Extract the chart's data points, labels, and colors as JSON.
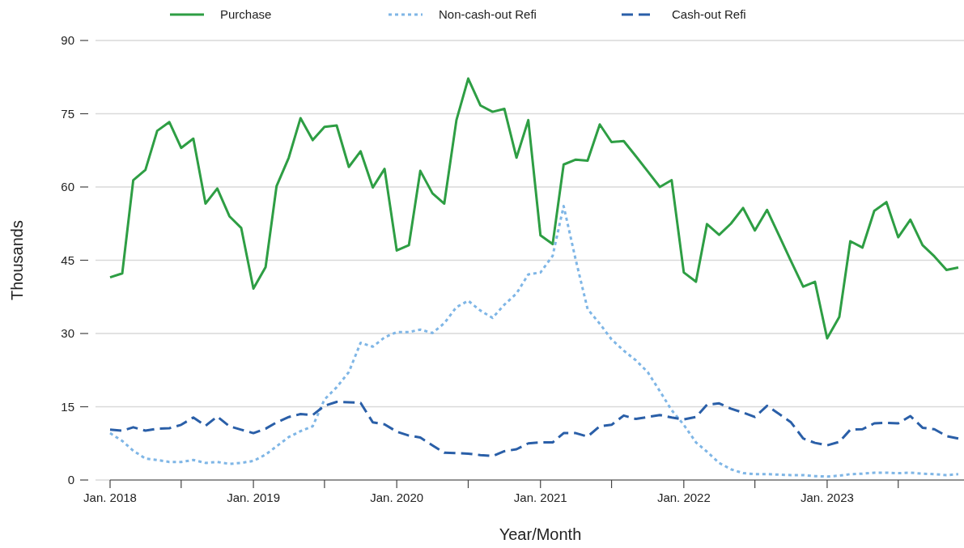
{
  "chart_data": {
    "type": "line",
    "xlabel": "Year/Month",
    "ylabel": "Thousands",
    "x": [
      "2018-01",
      "2018-02",
      "2018-03",
      "2018-04",
      "2018-05",
      "2018-06",
      "2018-07",
      "2018-08",
      "2018-09",
      "2018-10",
      "2018-11",
      "2018-12",
      "2019-01",
      "2019-02",
      "2019-03",
      "2019-04",
      "2019-05",
      "2019-06",
      "2019-07",
      "2019-08",
      "2019-09",
      "2019-10",
      "2019-11",
      "2019-12",
      "2020-01",
      "2020-02",
      "2020-03",
      "2020-04",
      "2020-05",
      "2020-06",
      "2020-07",
      "2020-08",
      "2020-09",
      "2020-10",
      "2020-11",
      "2020-12",
      "2021-01",
      "2021-02",
      "2021-03",
      "2021-04",
      "2021-05",
      "2021-06",
      "2021-07",
      "2021-08",
      "2021-09",
      "2021-10",
      "2021-11",
      "2021-12",
      "2022-01",
      "2022-02",
      "2022-03",
      "2022-04",
      "2022-05",
      "2022-06",
      "2022-07",
      "2022-08",
      "2022-09",
      "2022-10",
      "2022-11",
      "2022-12",
      "2023-01",
      "2023-02",
      "2023-03",
      "2023-04",
      "2023-05",
      "2023-06",
      "2023-07",
      "2023-08",
      "2023-09",
      "2023-10",
      "2023-11",
      "2023-12"
    ],
    "series": [
      {
        "name": "Purchase",
        "color": "#2e9e44",
        "line_style": "solid",
        "values": [
          41.5,
          42.3,
          61.4,
          63.5,
          71.5,
          73.3,
          68,
          69.9,
          56.6,
          59.7,
          54,
          51.6,
          39.2,
          43.6,
          60.2,
          66,
          74.1,
          69.6,
          72.3,
          72.6,
          64.1,
          67.3,
          59.9,
          63.7,
          47,
          48.1,
          63.3,
          58.7,
          56.6,
          73.7,
          82.2,
          76.7,
          75.4,
          76,
          66,
          73.7,
          50.1,
          48.3,
          64.6,
          65.6,
          65.4,
          72.8,
          69.2,
          69.4,
          66.3,
          63.2,
          60,
          61.4,
          42.5,
          40.6,
          52.4,
          50.2,
          52.5,
          55.7,
          51.1,
          55.3,
          50,
          44.8,
          39.6,
          40.6,
          29,
          33.4,
          48.9,
          47.6,
          55.1,
          56.9,
          49.7,
          53.3,
          48.1,
          45.8,
          43,
          43.5
        ]
      },
      {
        "name": "Non-cash-out Refi",
        "color": "#7fb6e6",
        "line_style": "dotted",
        "values": [
          9.6,
          8,
          6,
          4.4,
          4.1,
          3.7,
          3.7,
          4.1,
          3.5,
          3.7,
          3.3,
          3.5,
          3.9,
          5.2,
          6.9,
          8.8,
          10,
          11,
          16.5,
          19,
          22.1,
          28.1,
          27.3,
          29.2,
          30.3,
          30.3,
          30.8,
          30.1,
          32.1,
          35.4,
          36.7,
          34.7,
          33.2,
          35.9,
          38.2,
          42.1,
          42.5,
          45.9,
          56.1,
          45,
          35,
          32,
          28.8,
          26.5,
          24.5,
          22.1,
          18.2,
          14.3,
          11.3,
          7.7,
          5.8,
          3.5,
          2.2,
          1.4,
          1.2,
          1.2,
          1.1,
          1,
          1,
          0.8,
          0.7,
          0.9,
          1.2,
          1.3,
          1.5,
          1.5,
          1.4,
          1.5,
          1.3,
          1.2,
          1,
          1.2
        ]
      },
      {
        "name": "Cash-out Refi",
        "color": "#2a5fa8",
        "line_style": "dashed",
        "values": [
          10.3,
          10.1,
          10.8,
          10.1,
          10.5,
          10.6,
          11.3,
          12.8,
          11.1,
          13,
          11,
          10.3,
          9.6,
          10.5,
          11.8,
          12.9,
          13.5,
          13.3,
          15.2,
          16,
          15.9,
          15.8,
          11.8,
          11.4,
          9.9,
          9.1,
          8.7,
          7.1,
          5.6,
          5.5,
          5.4,
          5.1,
          4.9,
          5.9,
          6.3,
          7.5,
          7.7,
          7.7,
          9.6,
          9.6,
          8.9,
          11,
          11.3,
          13.2,
          12.5,
          12.9,
          13.3,
          12.8,
          12.4,
          12.9,
          15.4,
          15.7,
          14.6,
          13.8,
          12.9,
          15.2,
          13.5,
          11.8,
          8.5,
          7.6,
          7.1,
          7.8,
          10.3,
          10.4,
          11.6,
          11.7,
          11.6,
          13.1,
          10.7,
          10.4,
          9,
          8.5
        ]
      }
    ],
    "xlim": [
      "2018-01",
      "2024-01"
    ],
    "xticks": [
      {
        "value": "2018-01",
        "label": "Jan. 2018"
      },
      {
        "value": "2018-07",
        "label": null
      },
      {
        "value": "2019-01",
        "label": "Jan. 2019"
      },
      {
        "value": "2019-07",
        "label": null
      },
      {
        "value": "2020-01",
        "label": "Jan. 2020"
      },
      {
        "value": "2020-07",
        "label": null
      },
      {
        "value": "2021-01",
        "label": "Jan. 2021"
      },
      {
        "value": "2021-07",
        "label": null
      },
      {
        "value": "2022-01",
        "label": "Jan. 2022"
      },
      {
        "value": "2022-07",
        "label": null
      },
      {
        "value": "2023-01",
        "label": "Jan. 2023"
      },
      {
        "value": "2023-07",
        "label": null
      },
      {
        "value": "2024-01",
        "label": null
      }
    ],
    "ylim": [
      0,
      90
    ],
    "yticks": [
      0,
      15,
      30,
      45,
      60,
      75,
      90
    ],
    "grid": "y",
    "legend": "top"
  }
}
